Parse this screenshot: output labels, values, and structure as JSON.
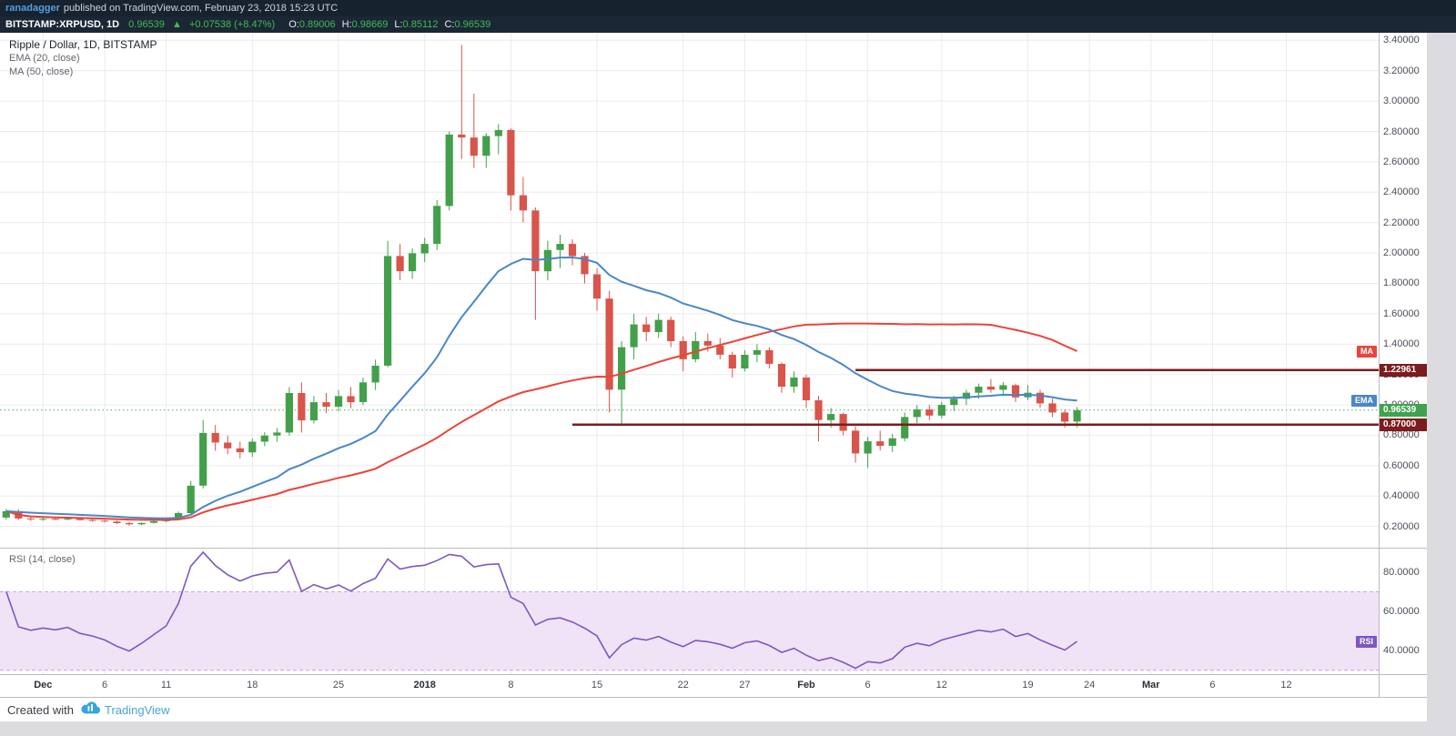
{
  "publish_bar": {
    "author": "ranadagger",
    "text": "published on TradingView.com, February 23, 2018 15:23 UTC"
  },
  "symbol_bar": {
    "symbol": "BITSTAMP:XRPUSD, 1D",
    "last": "0.96539",
    "arrow": "▲",
    "change": "+0.07538 (+8.47%)",
    "ohlc": [
      {
        "label": "O:",
        "value": "0.89006"
      },
      {
        "label": "H:",
        "value": "0.98669"
      },
      {
        "label": "L:",
        "value": "0.85112"
      },
      {
        "label": "C:",
        "value": "0.96539"
      }
    ]
  },
  "footer": {
    "created_with": "Created with",
    "brand": "TradingView"
  },
  "chart_data": {
    "type": "candlestick",
    "title": "Ripple / Dollar, 1D, BITSTAMP",
    "symbol": "BITSTAMP:XRPUSD",
    "interval": "1D",
    "total_slots": 112,
    "price_axis": {
      "min": 0.06,
      "max": 3.45,
      "ticks": [
        0.2,
        0.4,
        0.6,
        0.8,
        1.0,
        1.2,
        1.4,
        1.6,
        1.8,
        2.0,
        2.2,
        2.4,
        2.6,
        2.8,
        3.0,
        3.2,
        3.4
      ]
    },
    "time_ticks": [
      {
        "label": "Dec",
        "index": 3,
        "bold": true
      },
      {
        "label": "6",
        "index": 8
      },
      {
        "label": "11",
        "index": 13
      },
      {
        "label": "18",
        "index": 20
      },
      {
        "label": "25",
        "index": 27
      },
      {
        "label": "2018",
        "index": 34,
        "bold": true
      },
      {
        "label": "8",
        "index": 41
      },
      {
        "label": "15",
        "index": 48
      },
      {
        "label": "22",
        "index": 55
      },
      {
        "label": "27",
        "index": 60
      },
      {
        "label": "Feb",
        "index": 65,
        "bold": true
      },
      {
        "label": "6",
        "index": 70
      },
      {
        "label": "12",
        "index": 76
      },
      {
        "label": "19",
        "index": 83
      },
      {
        "label": "24",
        "index": 88
      },
      {
        "label": "Mar",
        "index": 93,
        "bold": true
      },
      {
        "label": "6",
        "index": 98
      },
      {
        "label": "12",
        "index": 104
      }
    ],
    "levels": [
      {
        "value": 1.22961,
        "label": "1.22961",
        "start_index": 69
      },
      {
        "value": 0.87,
        "label": "0.87000",
        "start_index": 46
      }
    ],
    "last_price": {
      "value": 0.96539,
      "label": "0.96539"
    },
    "overlays": {
      "ema_period": 20,
      "ema_label": "EMA (20, close)",
      "ma_period": 50,
      "ma_label": "MA (50, close)"
    },
    "badges": {
      "ma": "MA",
      "ema": "EMA"
    },
    "rsi": {
      "period": 14,
      "label": "RSI (14, close)",
      "badge": "RSI",
      "upper_band": 70,
      "lower_band": 30,
      "axis_min": 28,
      "axis_max": 92,
      "ticks": [
        80,
        60,
        40
      ]
    },
    "colors": {
      "up": "#42a04a",
      "down": "#d9544a",
      "ema": "#4a87c7",
      "ma": "#ef4136",
      "ema_badge": "#4a87c7",
      "ma_badge": "#e8453c",
      "level": "#7c1c1f",
      "level_badge": "#7c1c1f",
      "price_badge": "#3fa34d",
      "rsi": "#7e57c2",
      "rsi_band": "#f1e3f6",
      "rsi_band_border": "#c9a3dc",
      "grid": "#ebebef"
    },
    "candles": [
      [
        "2017-11-28",
        0.258,
        0.315,
        0.245,
        0.3
      ],
      [
        "2017-11-29",
        0.3,
        0.312,
        0.242,
        0.252
      ],
      [
        "2017-11-30",
        0.252,
        0.264,
        0.236,
        0.246
      ],
      [
        "2017-12-01",
        0.246,
        0.258,
        0.238,
        0.25
      ],
      [
        "2017-12-02",
        0.25,
        0.256,
        0.242,
        0.247
      ],
      [
        "2017-12-03",
        0.247,
        0.254,
        0.24,
        0.251
      ],
      [
        "2017-12-04",
        0.251,
        0.255,
        0.238,
        0.242
      ],
      [
        "2017-12-05",
        0.242,
        0.248,
        0.232,
        0.238
      ],
      [
        "2017-12-06",
        0.238,
        0.244,
        0.226,
        0.232
      ],
      [
        "2017-12-07",
        0.232,
        0.238,
        0.216,
        0.222
      ],
      [
        "2017-12-08",
        0.222,
        0.23,
        0.205,
        0.214
      ],
      [
        "2017-12-09",
        0.214,
        0.226,
        0.208,
        0.223
      ],
      [
        "2017-12-10",
        0.223,
        0.238,
        0.218,
        0.234
      ],
      [
        "2017-12-11",
        0.234,
        0.25,
        0.228,
        0.246
      ],
      [
        "2017-12-12",
        0.246,
        0.298,
        0.242,
        0.288
      ],
      [
        "2017-12-13",
        0.288,
        0.5,
        0.282,
        0.468
      ],
      [
        "2017-12-14",
        0.468,
        0.9,
        0.45,
        0.815
      ],
      [
        "2017-12-15",
        0.815,
        0.868,
        0.698,
        0.752
      ],
      [
        "2017-12-16",
        0.752,
        0.798,
        0.676,
        0.714
      ],
      [
        "2017-12-17",
        0.714,
        0.758,
        0.648,
        0.688
      ],
      [
        "2017-12-18",
        0.688,
        0.778,
        0.658,
        0.758
      ],
      [
        "2017-12-19",
        0.758,
        0.82,
        0.728,
        0.798
      ],
      [
        "2017-12-20",
        0.798,
        0.848,
        0.758,
        0.818
      ],
      [
        "2017-12-21",
        0.818,
        1.118,
        0.798,
        1.078
      ],
      [
        "2017-12-22",
        1.078,
        1.148,
        0.818,
        0.898
      ],
      [
        "2017-12-23",
        0.898,
        1.058,
        0.878,
        1.018
      ],
      [
        "2017-12-24",
        1.018,
        1.078,
        0.948,
        0.988
      ],
      [
        "2017-12-25",
        0.988,
        1.098,
        0.958,
        1.058
      ],
      [
        "2017-12-26",
        1.058,
        1.118,
        0.978,
        1.018
      ],
      [
        "2017-12-27",
        1.018,
        1.178,
        0.998,
        1.148
      ],
      [
        "2017-12-28",
        1.148,
        1.298,
        1.098,
        1.258
      ],
      [
        "2017-12-29",
        1.258,
        2.08,
        1.248,
        1.98
      ],
      [
        "2017-12-30",
        1.98,
        2.06,
        1.82,
        1.88
      ],
      [
        "2017-12-31",
        1.88,
        2.03,
        1.83,
        1.998
      ],
      [
        "2018-01-01",
        1.998,
        2.1,
        1.94,
        2.06
      ],
      [
        "2018-01-02",
        2.06,
        2.35,
        2.02,
        2.31
      ],
      [
        "2018-01-03",
        2.31,
        2.8,
        2.28,
        2.78
      ],
      [
        "2018-01-04",
        2.78,
        3.37,
        2.62,
        2.76
      ],
      [
        "2018-01-05",
        2.76,
        3.049,
        2.56,
        2.64
      ],
      [
        "2018-01-06",
        2.64,
        2.79,
        2.56,
        2.77
      ],
      [
        "2018-01-07",
        2.77,
        2.848,
        2.65,
        2.81
      ],
      [
        "2018-01-08",
        2.81,
        2.82,
        2.28,
        2.38
      ],
      [
        "2018-01-09",
        2.38,
        2.5,
        2.2,
        2.28
      ],
      [
        "2018-01-10",
        2.28,
        2.3,
        1.56,
        1.88
      ],
      [
        "2018-01-11",
        1.88,
        2.08,
        1.82,
        2.02
      ],
      [
        "2018-01-12",
        2.02,
        2.12,
        1.9,
        2.06
      ],
      [
        "2018-01-13",
        2.06,
        2.09,
        1.92,
        1.98
      ],
      [
        "2018-01-14",
        1.98,
        2.0,
        1.8,
        1.86
      ],
      [
        "2018-01-15",
        1.86,
        1.9,
        1.62,
        1.7
      ],
      [
        "2018-01-16",
        1.7,
        1.75,
        0.95,
        1.1
      ],
      [
        "2018-01-17",
        1.1,
        1.42,
        0.87,
        1.38
      ],
      [
        "2018-01-18",
        1.38,
        1.6,
        1.3,
        1.53
      ],
      [
        "2018-01-19",
        1.53,
        1.58,
        1.42,
        1.48
      ],
      [
        "2018-01-20",
        1.48,
        1.6,
        1.44,
        1.56
      ],
      [
        "2018-01-21",
        1.56,
        1.58,
        1.38,
        1.42
      ],
      [
        "2018-01-22",
        1.42,
        1.45,
        1.22,
        1.3
      ],
      [
        "2018-01-23",
        1.3,
        1.48,
        1.28,
        1.42
      ],
      [
        "2018-01-24",
        1.42,
        1.47,
        1.35,
        1.39
      ],
      [
        "2018-01-25",
        1.39,
        1.44,
        1.3,
        1.33
      ],
      [
        "2018-01-26",
        1.33,
        1.35,
        1.18,
        1.24
      ],
      [
        "2018-01-27",
        1.24,
        1.36,
        1.22,
        1.33
      ],
      [
        "2018-01-28",
        1.33,
        1.4,
        1.28,
        1.36
      ],
      [
        "2018-01-29",
        1.36,
        1.38,
        1.24,
        1.27
      ],
      [
        "2018-01-30",
        1.27,
        1.28,
        1.08,
        1.12
      ],
      [
        "2018-01-31",
        1.12,
        1.22,
        1.08,
        1.18
      ],
      [
        "2018-02-01",
        1.18,
        1.2,
        0.98,
        1.03
      ],
      [
        "2018-02-02",
        1.03,
        1.06,
        0.76,
        0.9
      ],
      [
        "2018-02-03",
        0.9,
        0.98,
        0.85,
        0.94
      ],
      [
        "2018-02-04",
        0.94,
        0.95,
        0.8,
        0.83
      ],
      [
        "2018-02-05",
        0.83,
        0.86,
        0.62,
        0.68
      ],
      [
        "2018-02-06",
        0.68,
        0.79,
        0.585,
        0.76
      ],
      [
        "2018-02-07",
        0.76,
        0.83,
        0.7,
        0.73
      ],
      [
        "2018-02-08",
        0.73,
        0.81,
        0.69,
        0.78
      ],
      [
        "2018-02-09",
        0.78,
        0.95,
        0.76,
        0.92
      ],
      [
        "2018-02-10",
        0.92,
        1.0,
        0.88,
        0.97
      ],
      [
        "2018-02-11",
        0.97,
        1.0,
        0.9,
        0.93
      ],
      [
        "2018-02-12",
        0.93,
        1.02,
        0.91,
        1.0
      ],
      [
        "2018-02-13",
        1.0,
        1.06,
        0.96,
        1.04
      ],
      [
        "2018-02-14",
        1.04,
        1.1,
        1.0,
        1.08
      ],
      [
        "2018-02-15",
        1.08,
        1.14,
        1.04,
        1.12
      ],
      [
        "2018-02-16",
        1.12,
        1.17,
        1.08,
        1.1
      ],
      [
        "2018-02-17",
        1.1,
        1.15,
        1.06,
        1.13
      ],
      [
        "2018-02-18",
        1.13,
        1.14,
        1.02,
        1.05
      ],
      [
        "2018-02-19",
        1.05,
        1.13,
        1.03,
        1.08
      ],
      [
        "2018-02-20",
        1.08,
        1.1,
        0.98,
        1.01
      ],
      [
        "2018-02-21",
        1.01,
        1.04,
        0.92,
        0.95
      ],
      [
        "2018-02-22",
        0.95,
        0.97,
        0.85,
        0.89
      ],
      [
        "2018-02-23",
        0.89006,
        0.98669,
        0.85112,
        0.96539
      ]
    ]
  }
}
